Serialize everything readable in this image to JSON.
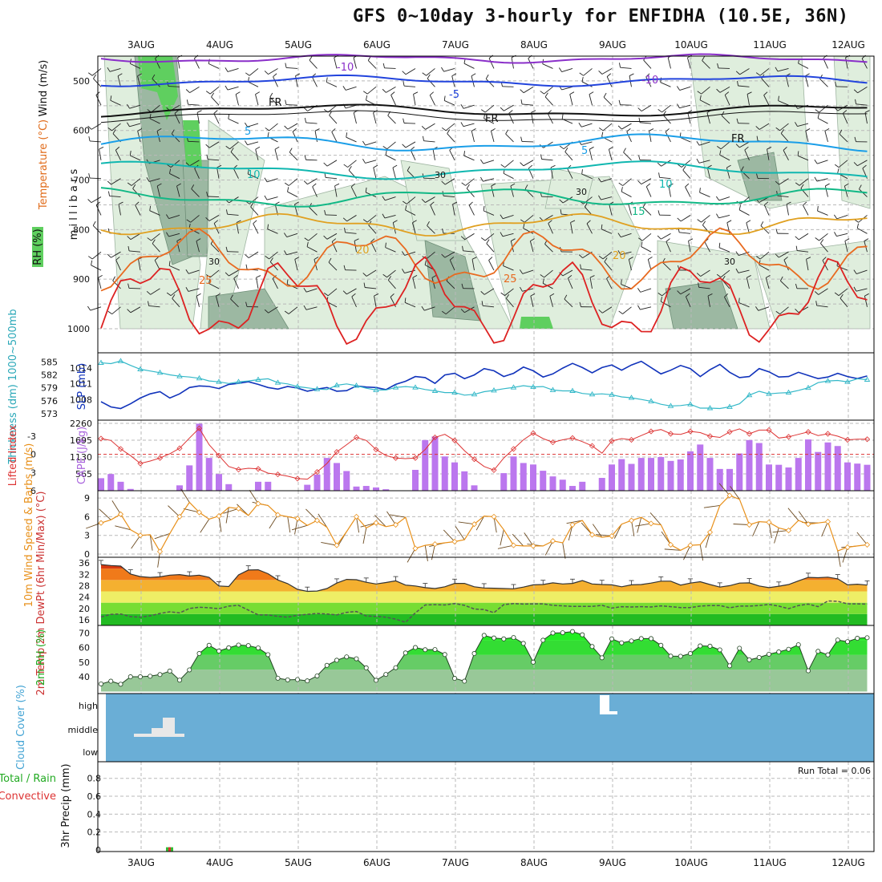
{
  "title": "GFS 0~10day 3-hourly for ENFIDHA (10.5E, 36N)",
  "dates": [
    "3AUG",
    "4AUG",
    "5AUG",
    "6AUG",
    "7AUG",
    "8AUG",
    "9AUG",
    "10AUG",
    "11AUG",
    "12AUG"
  ],
  "run_total": "Run Total = 0.06",
  "chart_data": [
    {
      "type": "contour",
      "panel": "upper-air",
      "ylabel": "m i l l i b a r s",
      "legend_labels": [
        "Wind (m/s)",
        "Temperature (°C)",
        "RH (%)"
      ],
      "yticks": [
        500,
        600,
        700,
        800,
        900,
        1000
      ],
      "ylim": [
        450,
        1000
      ],
      "isotherm_labels": [
        "-10",
        "-5",
        "FR",
        "5",
        "10",
        "15",
        "20",
        "25"
      ],
      "rh_labels": [
        "30"
      ],
      "colors": {
        "m10": "#8a2fc9",
        "m5": "#2244dd",
        "fr": "#111111",
        "p5": "#1a9ee8",
        "p10": "#10b7b0",
        "p15": "#12b886",
        "p20": "#e0a020",
        "p25": "#e86a20",
        "p30": "#dd2222",
        "rh_light": "#dfeedd",
        "rh_mid": "#9cb8a2",
        "rh_dark": "#6f8f78",
        "rh_green": "#5fcf5f"
      }
    },
    {
      "type": "line",
      "panel": "pressure",
      "ylabel_left": "Thickness (dm) 1000~500mb",
      "ylabel_right": "SLP (mb)",
      "thickness_ticks": [
        573,
        576,
        579,
        582,
        585
      ],
      "slp_ticks": [
        1008,
        1011,
        1014
      ],
      "series": [
        {
          "name": "SLP",
          "color": "#1133bb",
          "values": [
            1007.6,
            1006.6,
            1006.3,
            1007.2,
            1008.3,
            1009.1,
            1009.5,
            1008.3,
            1009.1,
            1010.3,
            1010.6,
            1010.5,
            1010.1,
            1010.9,
            1011.1,
            1011.4,
            1010.9,
            1010.3,
            1010.0,
            1010.5,
            1010.2,
            1009.6,
            1010.0,
            1010.3,
            1009.6,
            1009.7,
            1010.6,
            1010.4,
            1010.3,
            1009.9,
            1010.9,
            1011.5,
            1012.4,
            1012.2,
            1011.1,
            1012.7,
            1013.0,
            1012.0,
            1012.7,
            1013.9,
            1013.5,
            1012.4,
            1013.0,
            1014.2,
            1013.5,
            1012.3,
            1012.9,
            1014.0,
            1014.9,
            1014.1,
            1013.1,
            1014.1,
            1014.6,
            1013.6,
            1014.6,
            1015.3,
            1014.1,
            1012.9,
            1013.6,
            1014.5,
            1013.9,
            1012.4,
            1013.7,
            1014.7,
            1013.2,
            1012.2,
            1012.4,
            1013.9,
            1013.3,
            1012.3,
            1012.4,
            1013.2,
            1012.6,
            1012.0,
            1012.3,
            1013.0,
            1012.4,
            1012.0,
            1012.5
          ]
        },
        {
          "name": "Thickness",
          "color": "#33b8c8",
          "values": [
            584.8,
            584.6,
            585.2,
            584.2,
            583.3,
            582.9,
            582.5,
            582.0,
            581.7,
            581.5,
            581.2,
            580.6,
            580.4,
            580.0,
            580.4,
            580.6,
            580.9,
            581.1,
            580.2,
            579.9,
            579.3,
            579.0,
            578.7,
            578.6,
            579.6,
            579.9,
            579.5,
            578.9,
            578.5,
            578.5,
            579.1,
            579.3,
            579.1,
            578.6,
            578.3,
            577.9,
            577.9,
            577.3,
            577.5,
            578.1,
            578.4,
            578.8,
            579.1,
            579.5,
            579.2,
            579.3,
            578.5,
            578.3,
            578.3,
            577.7,
            577.5,
            577.6,
            577.4,
            576.9,
            576.7,
            576.3,
            575.9,
            575.2,
            574.8,
            574.9,
            575.2,
            574.3,
            574.3,
            574.2,
            574.6,
            575.3,
            577.3,
            578.2,
            577.6,
            577.8,
            577.9,
            578.4,
            579.0,
            580.2,
            580.6,
            580.7,
            580.4,
            581.1,
            580.9
          ]
        }
      ]
    },
    {
      "type": "bar",
      "panel": "stability",
      "ylabel_left": "Lifted Index",
      "ylabel_right": "CAPE (J/kg)",
      "li_ticks": [
        -3,
        0,
        3,
        6
      ],
      "cape_ticks": [
        565,
        1130,
        1695,
        2260
      ],
      "series": [
        {
          "name": "CAPE",
          "color": "#bb77ee",
          "values": [
            420,
            560,
            300,
            60,
            0,
            0,
            0,
            0,
            180,
            850,
            2250,
            1100,
            560,
            220,
            0,
            0,
            300,
            300,
            0,
            0,
            0,
            200,
            540,
            1100,
            930,
            660,
            140,
            160,
            110,
            50,
            0,
            0,
            700,
            1700,
            1820,
            1150,
            950,
            650,
            180,
            0,
            0,
            590,
            1150,
            930,
            880,
            670,
            480,
            370,
            160,
            300,
            0,
            430,
            880,
            1060,
            900,
            1100,
            1100,
            1130,
            1000,
            1050,
            1320,
            1550,
            1100,
            730,
            730,
            1250,
            1700,
            1600,
            880,
            870,
            780,
            1100,
            1720,
            1300,
            1620,
            1500,
            950,
            910,
            870
          ]
        },
        {
          "name": "Lifted Index",
          "color": "#dd3333",
          "values": [
            -2.6,
            -2.3,
            -0.9,
            0.2,
            1.5,
            1.1,
            0.6,
            -0.1,
            -1.0,
            -2.7,
            -4.3,
            -1.6,
            0.2,
            2.0,
            2.5,
            2.3,
            2.4,
            3.1,
            3.3,
            3.6,
            4.0,
            4.1,
            2.9,
            1.5,
            -0.4,
            -1.6,
            -2.8,
            -2.3,
            -0.8,
            0.2,
            0.6,
            0.7,
            0.6,
            -0.8,
            -2.8,
            -3.3,
            -2.3,
            -0.6,
            0.8,
            2.0,
            2.6,
            0.6,
            -0.9,
            -2.4,
            -3.5,
            -2.6,
            -2.0,
            -2.4,
            -2.7,
            -2.1,
            -1.4,
            -0.2,
            -2.2,
            -2.6,
            -2.4,
            -3.1,
            -3.8,
            -4.1,
            -3.4,
            -3.3,
            -3.8,
            -3.6,
            -3.0,
            -2.8,
            -3.7,
            -4.2,
            -3.4,
            -4.0,
            -4.0,
            -2.7,
            -2.9,
            -3.3,
            -3.7,
            -3.1,
            -3.4,
            -3.0,
            -2.4,
            -2.5,
            -2.5
          ]
        }
      ]
    },
    {
      "type": "line",
      "panel": "wind",
      "ylabel": "10m Wind Speed & Barbs (m/s)",
      "yticks": [
        0,
        3,
        6,
        9
      ],
      "series": [
        {
          "name": "10m Wind Speed",
          "color": "#e8901a",
          "values": [
            5.0,
            5.5,
            6.4,
            3.9,
            3.0,
            3.1,
            0.4,
            3.3,
            6.0,
            8.3,
            6.7,
            5.6,
            6.1,
            7.5,
            7.3,
            6.2,
            8.1,
            7.8,
            6.3,
            6.0,
            5.7,
            4.6,
            5.4,
            4.3,
            1.4,
            3.6,
            6.0,
            4.2,
            5.0,
            4.4,
            4.7,
            5.9,
            0.9,
            1.4,
            1.6,
            1.8,
            2.0,
            2.3,
            4.8,
            6.1,
            6.0,
            3.9,
            1.4,
            1.3,
            1.3,
            1.3,
            2.1,
            1.8,
            4.7,
            5.4,
            3.1,
            2.7,
            2.9,
            4.8,
            5.4,
            5.9,
            4.9,
            4.7,
            1.5,
            0.6,
            1.4,
            1.5,
            3.5,
            7.8,
            9.4,
            8.8,
            4.7,
            5.2,
            5.1,
            4.2,
            3.8,
            5.4,
            4.8,
            5.0,
            5.2,
            0.5,
            1.1,
            1.3,
            1.5
          ]
        }
      ]
    },
    {
      "type": "area",
      "panel": "temperature",
      "ylabel": "2m Temp 2m DewPt (6hr Min/Max) (°C)",
      "yticks": [
        16,
        20,
        24,
        28,
        32,
        36
      ],
      "series": [
        {
          "name": "2m Temp",
          "color": "#e06a18",
          "values": [
            35.4,
            35.1,
            34.9,
            32.1,
            31.2,
            30.9,
            31.1,
            31.7,
            31.9,
            31.4,
            31.7,
            30.9,
            27.9,
            27.7,
            31.8,
            33.5,
            33.6,
            32.2,
            30.0,
            28.7,
            26.7,
            26.0,
            26.1,
            27.0,
            28.9,
            30.2,
            30.1,
            29.2,
            28.6,
            29.1,
            29.7,
            28.2,
            27.9,
            27.3,
            27.0,
            27.6,
            28.8,
            28.8,
            27.6,
            27.2,
            27.1,
            27.0,
            26.9,
            27.5,
            28.3,
            28.4,
            29.0,
            28.6,
            28.8,
            29.8,
            28.6,
            28.4,
            28.3,
            27.6,
            28.3,
            28.4,
            28.9,
            29.6,
            29.6,
            28.2,
            28.9,
            29.4,
            28.4,
            27.5,
            28.0,
            28.9,
            29.0,
            27.9,
            27.3,
            27.8,
            28.4,
            29.7,
            30.9,
            30.8,
            31.0,
            30.4,
            28.3,
            28.5,
            28.2
          ]
        },
        {
          "name": "2m DewPt",
          "color": "#555555",
          "values": [
            17.0,
            17.9,
            18.0,
            17.1,
            16.9,
            17.4,
            18.2,
            18.8,
            18.4,
            20.0,
            20.4,
            20.2,
            19.9,
            20.8,
            21.1,
            19.4,
            17.7,
            17.7,
            17.2,
            16.9,
            17.6,
            17.9,
            18.2,
            18.0,
            17.7,
            18.6,
            18.9,
            17.3,
            17.2,
            16.9,
            16.2,
            15.1,
            18.4,
            21.2,
            21.3,
            21.2,
            21.7,
            21.1,
            19.8,
            19.6,
            18.5,
            21.3,
            21.7,
            21.5,
            21.6,
            21.6,
            21.1,
            20.9,
            20.7,
            20.7,
            20.7,
            21.1,
            20.1,
            20.6,
            20.5,
            20.6,
            20.5,
            20.9,
            20.6,
            20.3,
            20.3,
            20.8,
            21.0,
            21.0,
            20.2,
            20.8,
            20.8,
            21.0,
            21.4,
            20.8,
            19.9,
            21.0,
            21.5,
            20.6,
            22.6,
            22.5,
            21.6,
            21.6,
            21.5
          ]
        }
      ]
    },
    {
      "type": "area",
      "panel": "humidity",
      "ylabel": "2m RH (%)",
      "yticks": [
        40,
        50,
        60,
        70
      ],
      "series": [
        {
          "name": "2m RH",
          "color": "#33cc33",
          "values": [
            35.2,
            37.1,
            35.0,
            40.1,
            40.1,
            40.5,
            41.6,
            44.0,
            37.8,
            44.8,
            56.0,
            61.6,
            57.7,
            59.9,
            61.8,
            61.4,
            59.8,
            55.2,
            39.1,
            38.0,
            38.2,
            37.3,
            40.7,
            47.9,
            51.4,
            53.7,
            52.4,
            46.2,
            37.7,
            41.7,
            46.3,
            56.4,
            60.1,
            58.6,
            58.7,
            55.3,
            39.0,
            37.1,
            56.0,
            68.4,
            66.6,
            66.0,
            66.9,
            62.9,
            50.1,
            65.1,
            70.0,
            70.2,
            71.0,
            68.8,
            60.8,
            53.1,
            66.0,
            63.3,
            64.6,
            66.2,
            66.2,
            61.6,
            54.2,
            54.1,
            56.0,
            61.2,
            61.0,
            58.5,
            47.6,
            59.6,
            51.7,
            53.3,
            55.5,
            57.1,
            58.9,
            62.0,
            44.2,
            57.5,
            55.1,
            65.2,
            64.1,
            66.4,
            66.8
          ]
        }
      ]
    },
    {
      "type": "bar",
      "panel": "clouds",
      "ylabel": "Cloud Cover (%)",
      "ytick_labels": [
        "high",
        "middle",
        "low"
      ],
      "background": "#6aaed6",
      "cloud_color": "#e8e8e8"
    },
    {
      "type": "bar",
      "panel": "precipitation",
      "ylabel": "3hr Precip (mm)",
      "legend_labels": [
        "Total / Rain",
        "Convective"
      ],
      "yticks": [
        0,
        0.2,
        0.4,
        0.6,
        0.8
      ],
      "series": [
        {
          "name": "Total / Rain",
          "color": "#33bb33",
          "values": [
            0.03
          ]
        },
        {
          "name": "Convective",
          "color": "#dd3333",
          "values": [
            0.03
          ]
        }
      ]
    }
  ]
}
